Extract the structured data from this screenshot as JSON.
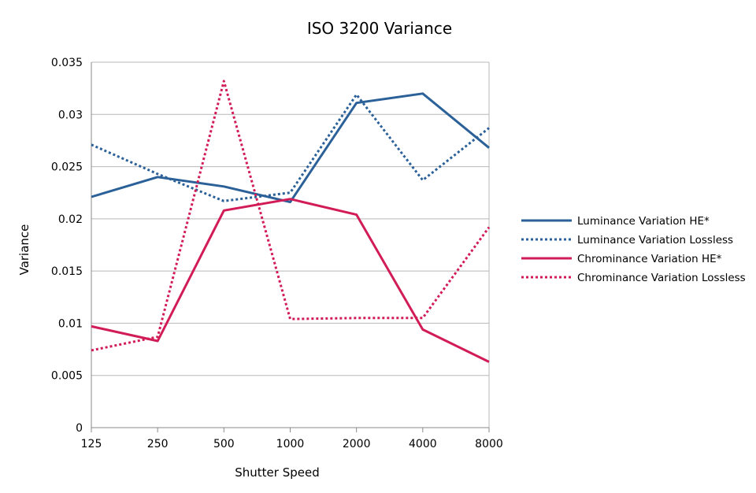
{
  "chart_data": {
    "type": "line",
    "title": "ISO 3200 Variance",
    "xlabel": "Shutter Speed",
    "ylabel": "Variance",
    "categories": [
      "125",
      "250",
      "500",
      "1000",
      "2000",
      "4000",
      "8000"
    ],
    "y_ticks": [
      "0",
      "0.005",
      "0.01",
      "0.015",
      "0.02",
      "0.025",
      "0.03",
      "0.035"
    ],
    "ylim": [
      0,
      0.035
    ],
    "grid": "horizontal",
    "legend_position": "right",
    "series": [
      {
        "name": "Luminance Variation HE*",
        "color": "#2b6198",
        "dash": "solid",
        "values": [
          0.0221,
          0.024,
          0.0231,
          0.0216,
          0.0311,
          0.032,
          0.0268
        ]
      },
      {
        "name": "Luminance Variation Lossless",
        "color": "#2b6198",
        "dash": "dotted",
        "values": [
          0.0271,
          0.0243,
          0.0217,
          0.0225,
          0.0319,
          0.0237,
          0.0287
        ]
      },
      {
        "name": "Chrominance Variation HE*",
        "color": "#d21c57",
        "dash": "solid",
        "values": [
          0.0097,
          0.0083,
          0.0208,
          0.0219,
          0.0204,
          0.0094,
          0.0063
        ]
      },
      {
        "name": "Chrominance Variation Lossless",
        "color": "#d21c57",
        "dash": "dotted",
        "values": [
          0.0074,
          0.0087,
          0.0332,
          0.0104,
          0.0105,
          0.0105,
          0.0192
        ]
      }
    ]
  }
}
